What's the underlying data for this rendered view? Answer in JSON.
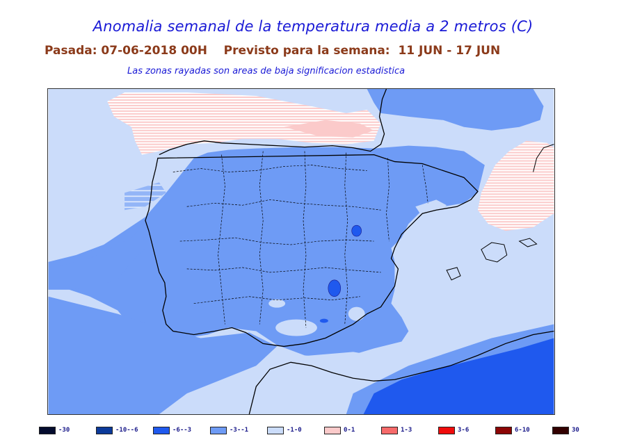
{
  "header": {
    "title": "Anomalia semanal de la temperatura media a 2 metros (C)",
    "subtitle": "Pasada: 07-06-2018 00H    Previsto para la semana:  11 JUN - 17 JUN",
    "note": "Las zonas rayadas son areas de baja significacion estadistica"
  },
  "colors": {
    "class_m1_0": "#cbdcfa",
    "class_m3_m1": "#6e9bf5",
    "class_m6_m3": "#1f59ee",
    "class_0_1": "#fbcaca",
    "coast": "#000000"
  },
  "legend": [
    {
      "label": "-30",
      "color": "#040c2e"
    },
    {
      "label": "-10--6",
      "color": "#0c3a9a"
    },
    {
      "label": "-6--3",
      "color": "#1f59ee"
    },
    {
      "label": "-3--1",
      "color": "#6e9bf5"
    },
    {
      "label": "-1-0",
      "color": "#cbdcfa"
    },
    {
      "label": "0-1",
      "color": "#fbcaca"
    },
    {
      "label": "1-3",
      "color": "#f66a6a"
    },
    {
      "label": "3-6",
      "color": "#f00c0c"
    },
    {
      "label": "6-10",
      "color": "#8c0606"
    },
    {
      "label": "30",
      "color": "#320000"
    }
  ]
}
